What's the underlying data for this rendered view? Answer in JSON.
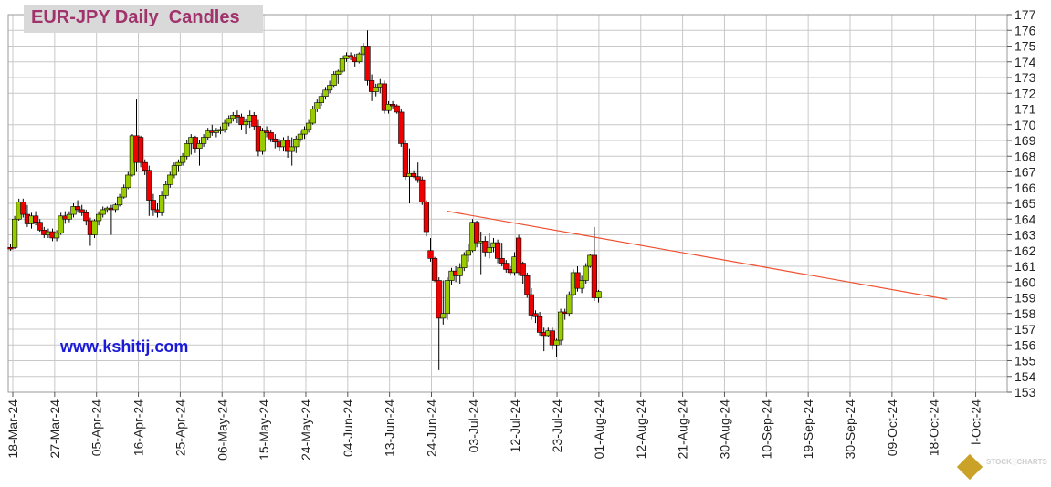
{
  "title": "EUR-JPY Daily  Candles",
  "website": "www.kshitij.com",
  "watermark": "STOCKCHARTS",
  "colors": {
    "bull": "#99cc00",
    "bear": "#ee0000",
    "trendline": "#f05030",
    "grid": "#c8c8c8",
    "title": "#a0336b",
    "website": "#1a1ad8"
  },
  "chart_data": {
    "type": "candlestick",
    "title": "EUR-JPY Daily  Candles",
    "y_axis_side": "right",
    "ylim": [
      153,
      177
    ],
    "y_ticks": [
      153,
      154,
      155,
      156,
      157,
      158,
      159,
      160,
      161,
      162,
      163,
      164,
      165,
      166,
      167,
      168,
      169,
      170,
      171,
      172,
      173,
      174,
      175,
      176,
      177
    ],
    "x_tick_labels": [
      "18-Mar-24",
      "27-Mar-24",
      "05-Apr-24",
      "16-Apr-24",
      "25-Apr-24",
      "06-May-24",
      "15-May-24",
      "24-May-24",
      "04-Jun-24",
      "13-Jun-24",
      "24-Jun-24",
      "03-Jul-24",
      "12-Jul-24",
      "23-Jul-24",
      "01-Aug-24",
      "12-Aug-24",
      "21-Aug-24",
      "30-Aug-24",
      "10-Sep-24",
      "19-Sep-24",
      "30-Sep-24",
      "09-Oct-24",
      "18-Oct-24",
      "l-Oct-24"
    ],
    "grid": true,
    "candles": [
      {
        "o": 162.2,
        "h": 162.4,
        "l": 162.0,
        "c": 162.1
      },
      {
        "o": 162.2,
        "h": 164.2,
        "l": 162.1,
        "c": 164.0
      },
      {
        "o": 164.0,
        "h": 165.3,
        "l": 163.9,
        "c": 165.1
      },
      {
        "o": 165.1,
        "h": 165.3,
        "l": 164.1,
        "c": 164.3
      },
      {
        "o": 164.3,
        "h": 164.9,
        "l": 163.5,
        "c": 163.7
      },
      {
        "o": 163.7,
        "h": 164.4,
        "l": 163.4,
        "c": 164.2
      },
      {
        "o": 164.2,
        "h": 164.5,
        "l": 163.6,
        "c": 163.8
      },
      {
        "o": 163.8,
        "h": 164.0,
        "l": 163.2,
        "c": 163.3
      },
      {
        "o": 163.3,
        "h": 163.5,
        "l": 162.8,
        "c": 163.0
      },
      {
        "o": 163.0,
        "h": 163.4,
        "l": 162.8,
        "c": 163.2
      },
      {
        "o": 163.2,
        "h": 163.4,
        "l": 162.6,
        "c": 162.8
      },
      {
        "o": 162.8,
        "h": 163.3,
        "l": 162.6,
        "c": 163.1
      },
      {
        "o": 163.1,
        "h": 164.4,
        "l": 163.0,
        "c": 164.2
      },
      {
        "o": 164.2,
        "h": 164.5,
        "l": 163.7,
        "c": 164.0
      },
      {
        "o": 164.0,
        "h": 164.5,
        "l": 163.8,
        "c": 164.3
      },
      {
        "o": 164.3,
        "h": 165.0,
        "l": 164.1,
        "c": 164.8
      },
      {
        "o": 164.8,
        "h": 165.2,
        "l": 164.4,
        "c": 164.6
      },
      {
        "o": 164.6,
        "h": 164.9,
        "l": 164.2,
        "c": 164.4
      },
      {
        "o": 164.4,
        "h": 164.6,
        "l": 163.6,
        "c": 163.9
      },
      {
        "o": 163.9,
        "h": 164.1,
        "l": 162.3,
        "c": 163.0
      },
      {
        "o": 163.0,
        "h": 164.0,
        "l": 162.8,
        "c": 163.9
      },
      {
        "o": 163.9,
        "h": 164.5,
        "l": 163.6,
        "c": 164.3
      },
      {
        "o": 164.3,
        "h": 164.8,
        "l": 164.1,
        "c": 164.6
      },
      {
        "o": 164.6,
        "h": 164.8,
        "l": 164.4,
        "c": 164.7
      },
      {
        "o": 164.7,
        "h": 164.9,
        "l": 163.0,
        "c": 164.6
      },
      {
        "o": 164.6,
        "h": 165.0,
        "l": 164.4,
        "c": 164.9
      },
      {
        "o": 164.9,
        "h": 165.6,
        "l": 164.8,
        "c": 165.4
      },
      {
        "o": 165.4,
        "h": 166.2,
        "l": 165.3,
        "c": 166.0
      },
      {
        "o": 166.0,
        "h": 167.0,
        "l": 165.9,
        "c": 166.8
      },
      {
        "o": 166.8,
        "h": 169.4,
        "l": 166.7,
        "c": 169.3
      },
      {
        "o": 169.3,
        "h": 171.6,
        "l": 167.0,
        "c": 167.6
      },
      {
        "o": 169.2,
        "h": 169.3,
        "l": 167.3,
        "c": 167.6
      },
      {
        "o": 167.6,
        "h": 167.8,
        "l": 166.8,
        "c": 167.1
      },
      {
        "o": 167.1,
        "h": 167.4,
        "l": 164.2,
        "c": 165.2
      },
      {
        "o": 165.2,
        "h": 165.6,
        "l": 164.2,
        "c": 164.6
      },
      {
        "o": 164.6,
        "h": 165.0,
        "l": 164.1,
        "c": 164.4
      },
      {
        "o": 164.4,
        "h": 165.8,
        "l": 164.2,
        "c": 165.5
      },
      {
        "o": 165.5,
        "h": 166.4,
        "l": 165.3,
        "c": 166.2
      },
      {
        "o": 166.2,
        "h": 167.0,
        "l": 166.0,
        "c": 166.8
      },
      {
        "o": 166.8,
        "h": 167.6,
        "l": 166.6,
        "c": 167.4
      },
      {
        "o": 167.4,
        "h": 167.8,
        "l": 167.0,
        "c": 167.6
      },
      {
        "o": 167.6,
        "h": 168.2,
        "l": 167.4,
        "c": 168.0
      },
      {
        "o": 168.0,
        "h": 169.0,
        "l": 167.8,
        "c": 168.8
      },
      {
        "o": 168.8,
        "h": 169.4,
        "l": 168.1,
        "c": 169.2
      },
      {
        "o": 169.2,
        "h": 169.3,
        "l": 168.2,
        "c": 168.5
      },
      {
        "o": 168.5,
        "h": 169.0,
        "l": 167.4,
        "c": 168.8
      },
      {
        "o": 168.8,
        "h": 169.4,
        "l": 168.6,
        "c": 169.2
      },
      {
        "o": 169.2,
        "h": 169.8,
        "l": 169.0,
        "c": 169.6
      },
      {
        "o": 169.6,
        "h": 170.0,
        "l": 169.3,
        "c": 169.5
      },
      {
        "o": 169.5,
        "h": 169.8,
        "l": 169.2,
        "c": 169.6
      },
      {
        "o": 169.6,
        "h": 169.9,
        "l": 169.4,
        "c": 169.7
      },
      {
        "o": 169.7,
        "h": 170.3,
        "l": 169.5,
        "c": 170.1
      },
      {
        "o": 170.1,
        "h": 170.6,
        "l": 169.9,
        "c": 170.4
      },
      {
        "o": 170.4,
        "h": 170.8,
        "l": 170.2,
        "c": 170.6
      },
      {
        "o": 170.6,
        "h": 170.9,
        "l": 170.1,
        "c": 170.5
      },
      {
        "o": 170.5,
        "h": 170.7,
        "l": 169.7,
        "c": 170.0
      },
      {
        "o": 170.0,
        "h": 170.4,
        "l": 169.4,
        "c": 170.2
      },
      {
        "o": 170.2,
        "h": 170.9,
        "l": 169.8,
        "c": 170.6
      },
      {
        "o": 170.6,
        "h": 170.8,
        "l": 169.7,
        "c": 169.9
      },
      {
        "o": 169.9,
        "h": 170.3,
        "l": 168.0,
        "c": 168.3
      },
      {
        "o": 168.3,
        "h": 169.8,
        "l": 168.1,
        "c": 169.6
      },
      {
        "o": 169.6,
        "h": 169.9,
        "l": 169.2,
        "c": 169.5
      },
      {
        "o": 169.5,
        "h": 169.7,
        "l": 168.9,
        "c": 169.1
      },
      {
        "o": 169.1,
        "h": 169.4,
        "l": 168.5,
        "c": 168.9
      },
      {
        "o": 168.9,
        "h": 169.1,
        "l": 168.3,
        "c": 168.6
      },
      {
        "o": 168.6,
        "h": 169.2,
        "l": 168.3,
        "c": 169.0
      },
      {
        "o": 169.0,
        "h": 169.3,
        "l": 167.9,
        "c": 168.3
      },
      {
        "o": 168.3,
        "h": 169.2,
        "l": 167.4,
        "c": 168.6
      },
      {
        "o": 168.6,
        "h": 169.3,
        "l": 168.2,
        "c": 169.1
      },
      {
        "o": 169.1,
        "h": 169.6,
        "l": 168.9,
        "c": 169.4
      },
      {
        "o": 169.4,
        "h": 169.9,
        "l": 169.1,
        "c": 169.7
      },
      {
        "o": 169.7,
        "h": 170.3,
        "l": 169.5,
        "c": 170.1
      },
      {
        "o": 170.1,
        "h": 171.2,
        "l": 170.0,
        "c": 171.0
      },
      {
        "o": 171.0,
        "h": 171.6,
        "l": 170.8,
        "c": 171.4
      },
      {
        "o": 171.4,
        "h": 172.0,
        "l": 171.2,
        "c": 171.8
      },
      {
        "o": 171.8,
        "h": 172.4,
        "l": 171.6,
        "c": 172.2
      },
      {
        "o": 172.2,
        "h": 172.8,
        "l": 172.0,
        "c": 172.5
      },
      {
        "o": 172.5,
        "h": 173.4,
        "l": 172.4,
        "c": 173.2
      },
      {
        "o": 173.2,
        "h": 173.5,
        "l": 172.6,
        "c": 173.4
      },
      {
        "o": 173.4,
        "h": 174.4,
        "l": 173.3,
        "c": 174.2
      },
      {
        "o": 174.2,
        "h": 174.6,
        "l": 174.0,
        "c": 174.4
      },
      {
        "o": 174.4,
        "h": 174.6,
        "l": 174.1,
        "c": 174.3
      },
      {
        "o": 174.3,
        "h": 174.5,
        "l": 173.7,
        "c": 174.0
      },
      {
        "o": 174.0,
        "h": 174.6,
        "l": 173.9,
        "c": 174.5
      },
      {
        "o": 174.5,
        "h": 175.2,
        "l": 174.4,
        "c": 175.0
      },
      {
        "o": 175.0,
        "h": 176.0,
        "l": 172.5,
        "c": 172.8
      },
      {
        "o": 172.8,
        "h": 173.2,
        "l": 171.5,
        "c": 172.1
      },
      {
        "o": 172.1,
        "h": 172.6,
        "l": 171.8,
        "c": 172.4
      },
      {
        "o": 172.4,
        "h": 172.9,
        "l": 172.0,
        "c": 172.6
      },
      {
        "o": 172.6,
        "h": 172.8,
        "l": 170.7,
        "c": 170.9
      },
      {
        "o": 170.9,
        "h": 171.5,
        "l": 170.7,
        "c": 171.3
      },
      {
        "o": 171.3,
        "h": 171.5,
        "l": 171.0,
        "c": 171.2
      },
      {
        "o": 171.2,
        "h": 171.3,
        "l": 170.7,
        "c": 170.8
      },
      {
        "o": 170.8,
        "h": 171.0,
        "l": 168.6,
        "c": 168.8
      },
      {
        "o": 168.8,
        "h": 169.0,
        "l": 166.5,
        "c": 166.7
      },
      {
        "o": 166.7,
        "h": 168.5,
        "l": 165.0,
        "c": 166.9
      },
      {
        "o": 166.9,
        "h": 167.1,
        "l": 166.6,
        "c": 166.7
      },
      {
        "o": 166.7,
        "h": 167.6,
        "l": 166.3,
        "c": 166.5
      },
      {
        "o": 166.5,
        "h": 166.7,
        "l": 164.9,
        "c": 165.1
      },
      {
        "o": 165.1,
        "h": 165.2,
        "l": 162.9,
        "c": 163.2
      },
      {
        "o": 162.0,
        "h": 162.8,
        "l": 161.3,
        "c": 161.5
      },
      {
        "o": 161.5,
        "h": 161.6,
        "l": 160.0,
        "c": 160.1
      },
      {
        "o": 160.1,
        "h": 160.3,
        "l": 154.4,
        "c": 157.7
      },
      {
        "o": 157.7,
        "h": 160.1,
        "l": 157.3,
        "c": 158.0
      },
      {
        "o": 158.0,
        "h": 160.3,
        "l": 157.6,
        "c": 160.1
      },
      {
        "o": 160.1,
        "h": 160.9,
        "l": 159.8,
        "c": 160.7
      },
      {
        "o": 160.7,
        "h": 161.0,
        "l": 160.0,
        "c": 160.4
      },
      {
        "o": 160.4,
        "h": 161.2,
        "l": 159.9,
        "c": 160.9
      },
      {
        "o": 160.9,
        "h": 161.9,
        "l": 160.7,
        "c": 161.7
      },
      {
        "o": 161.7,
        "h": 162.4,
        "l": 161.3,
        "c": 162.0
      },
      {
        "o": 162.0,
        "h": 164.0,
        "l": 161.9,
        "c": 163.8
      },
      {
        "o": 163.8,
        "h": 163.9,
        "l": 162.2,
        "c": 162.5
      },
      {
        "o": 162.5,
        "h": 163.2,
        "l": 160.5,
        "c": 162.6
      },
      {
        "o": 162.6,
        "h": 162.9,
        "l": 161.6,
        "c": 161.9
      },
      {
        "o": 161.9,
        "h": 163.1,
        "l": 161.5,
        "c": 162.2
      },
      {
        "o": 162.2,
        "h": 162.8,
        "l": 161.9,
        "c": 162.5
      },
      {
        "o": 162.5,
        "h": 162.7,
        "l": 161.2,
        "c": 161.5
      },
      {
        "o": 161.5,
        "h": 162.5,
        "l": 161.0,
        "c": 161.2
      },
      {
        "o": 161.2,
        "h": 161.4,
        "l": 160.6,
        "c": 160.8
      },
      {
        "o": 160.8,
        "h": 161.0,
        "l": 160.4,
        "c": 160.6
      },
      {
        "o": 160.6,
        "h": 161.9,
        "l": 160.4,
        "c": 161.6
      },
      {
        "o": 162.8,
        "h": 163.0,
        "l": 160.4,
        "c": 160.6
      },
      {
        "o": 161.2,
        "h": 161.3,
        "l": 159.9,
        "c": 160.4
      },
      {
        "o": 160.4,
        "h": 160.6,
        "l": 159.0,
        "c": 159.2
      },
      {
        "o": 159.2,
        "h": 159.6,
        "l": 157.6,
        "c": 157.9
      },
      {
        "o": 158.0,
        "h": 158.2,
        "l": 157.4,
        "c": 157.8
      },
      {
        "o": 157.8,
        "h": 158.1,
        "l": 156.6,
        "c": 156.8
      },
      {
        "o": 156.8,
        "h": 157.1,
        "l": 155.6,
        "c": 156.6
      },
      {
        "o": 156.6,
        "h": 157.1,
        "l": 156.5,
        "c": 156.9
      },
      {
        "o": 156.9,
        "h": 157.1,
        "l": 155.7,
        "c": 156.0
      },
      {
        "o": 156.0,
        "h": 156.4,
        "l": 155.2,
        "c": 156.3
      },
      {
        "o": 156.3,
        "h": 158.3,
        "l": 156.0,
        "c": 158.1
      },
      {
        "o": 158.1,
        "h": 158.3,
        "l": 157.6,
        "c": 158.0
      },
      {
        "o": 158.0,
        "h": 159.4,
        "l": 157.8,
        "c": 159.2
      },
      {
        "o": 159.2,
        "h": 160.8,
        "l": 159.1,
        "c": 160.6
      },
      {
        "o": 160.6,
        "h": 161.0,
        "l": 159.4,
        "c": 159.6
      },
      {
        "o": 159.6,
        "h": 160.4,
        "l": 159.3,
        "c": 160.1
      },
      {
        "o": 160.1,
        "h": 161.2,
        "l": 159.9,
        "c": 161.0
      },
      {
        "o": 161.0,
        "h": 161.8,
        "l": 160.9,
        "c": 161.7
      },
      {
        "o": 161.7,
        "h": 163.5,
        "l": 158.8,
        "c": 159.0
      },
      {
        "o": 159.0,
        "h": 159.5,
        "l": 158.7,
        "c": 159.4
      }
    ],
    "trendline": {
      "from": {
        "x_index": 104,
        "y": 164.5
      },
      "to": {
        "x_index": 223,
        "y": 158.9
      }
    }
  }
}
